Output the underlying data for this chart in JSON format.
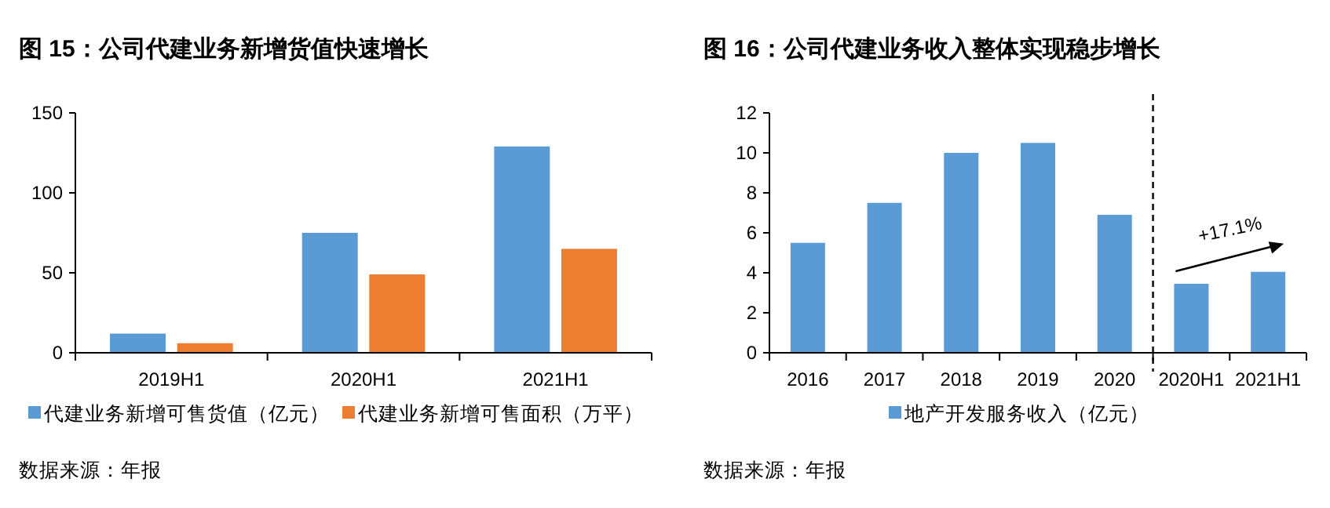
{
  "chart_data": [
    {
      "type": "bar",
      "title": "图 15：公司代建业务新增货值快速增长",
      "categories": [
        "2019H1",
        "2020H1",
        "2021H1"
      ],
      "series": [
        {
          "name": "代建业务新增可售货值（亿元）",
          "color": "#5b9bd5",
          "values": [
            12,
            75,
            129
          ]
        },
        {
          "name": "代建业务新增可售面积（万平）",
          "color": "#ed7d31",
          "values": [
            6,
            49,
            65
          ]
        }
      ],
      "ylim": [
        0,
        150
      ],
      "yticks": [
        0,
        50,
        100,
        150
      ],
      "grid": false,
      "legend": "bottom",
      "annotations": [
        "数据来源：年报"
      ]
    },
    {
      "type": "bar",
      "title": "图 16：公司代建业务收入整体实现稳步增长",
      "categories": [
        "2016",
        "2017",
        "2018",
        "2019",
        "2020",
        "2020H1",
        "2021H1"
      ],
      "series": [
        {
          "name": "地产开发服务收入（亿元）",
          "color": "#5b9bd5",
          "values": [
            5.5,
            7.5,
            10,
            10.5,
            6.9,
            3.45,
            4.05
          ]
        }
      ],
      "ylim": [
        0,
        12
      ],
      "yticks": [
        0,
        2,
        4,
        6,
        8,
        10,
        12
      ],
      "grid": false,
      "legend": "bottom",
      "annotations": [
        "+17.1%",
        "数据来源：年报"
      ]
    }
  ]
}
